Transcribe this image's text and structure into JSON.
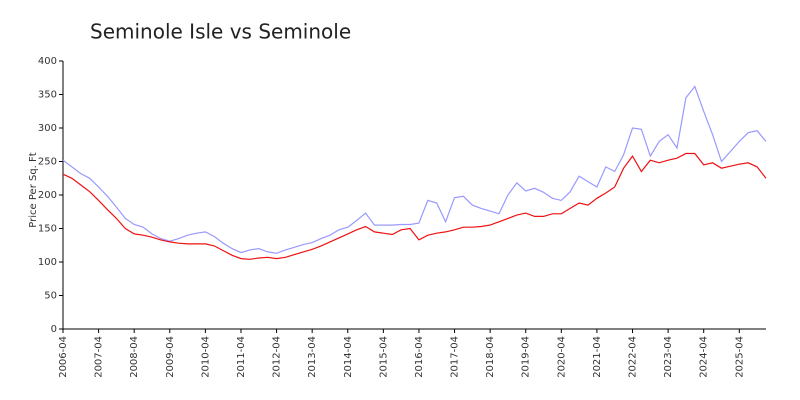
{
  "chart_data": {
    "type": "line",
    "title": "Seminole Isle vs Seminole",
    "y_label": "Price Per Sq. Ft",
    "x": [
      "2006-04",
      "2006-07",
      "2006-10",
      "2007-01",
      "2007-04",
      "2007-07",
      "2007-10",
      "2008-01",
      "2008-04",
      "2008-07",
      "2008-10",
      "2009-01",
      "2009-04",
      "2009-07",
      "2009-10",
      "2010-01",
      "2010-04",
      "2010-07",
      "2010-10",
      "2011-01",
      "2011-04",
      "2011-07",
      "2011-10",
      "2012-01",
      "2012-04",
      "2012-07",
      "2012-10",
      "2013-01",
      "2013-04",
      "2013-07",
      "2013-10",
      "2014-01",
      "2014-04",
      "2014-07",
      "2014-10",
      "2015-01",
      "2015-04",
      "2015-07",
      "2015-10",
      "2016-01",
      "2016-04",
      "2016-07",
      "2016-10",
      "2017-01",
      "2017-04",
      "2017-07",
      "2017-10",
      "2018-01",
      "2018-04",
      "2018-07",
      "2018-10",
      "2019-01",
      "2019-04",
      "2019-07",
      "2019-10",
      "2020-01",
      "2020-04",
      "2020-07",
      "2020-10",
      "2021-01",
      "2021-04",
      "2021-07",
      "2021-10",
      "2022-01",
      "2022-04",
      "2022-07",
      "2022-10",
      "2023-01",
      "2023-04",
      "2023-07",
      "2023-10",
      "2024-01",
      "2024-04",
      "2024-07",
      "2024-10",
      "2025-01",
      "2025-04",
      "2025-07",
      "2025-10",
      "2026-01"
    ],
    "series": [
      {
        "color": "#9999ff",
        "values": [
          252,
          242,
          232,
          225,
          212,
          198,
          182,
          165,
          156,
          152,
          142,
          135,
          131,
          135,
          140,
          143,
          145,
          138,
          128,
          120,
          114,
          118,
          120,
          115,
          113,
          118,
          122,
          126,
          129,
          135,
          140,
          148,
          152,
          162,
          173,
          155,
          155,
          155,
          156,
          156,
          158,
          192,
          188,
          160,
          196,
          198,
          185,
          180,
          176,
          172,
          200,
          218,
          206,
          210,
          204,
          195,
          192,
          205,
          228,
          220,
          212,
          242,
          235,
          260,
          300,
          298,
          258,
          280,
          290,
          270,
          345,
          362,
          325,
          290,
          250,
          265,
          280,
          293,
          296,
          280
        ]
      },
      {
        "color": "#ee1111",
        "values": [
          231,
          225,
          215,
          205,
          192,
          178,
          165,
          150,
          142,
          140,
          137,
          133,
          130,
          128,
          127,
          127,
          127,
          124,
          117,
          110,
          105,
          104,
          106,
          107,
          105,
          107,
          111,
          115,
          119,
          124,
          130,
          136,
          142,
          148,
          153,
          145,
          143,
          141,
          148,
          150,
          133,
          140,
          143,
          145,
          148,
          152,
          152,
          153,
          155,
          160,
          165,
          170,
          173,
          168,
          168,
          172,
          172,
          180,
          188,
          185,
          195,
          203,
          212,
          240,
          258,
          235,
          252,
          248,
          252,
          255,
          262,
          262,
          245,
          248,
          240,
          243,
          246,
          248,
          242,
          225
        ]
      }
    ],
    "xlim": [
      "2006-04",
      "2026-01"
    ],
    "xticks": [
      "2006-04",
      "2007-04",
      "2008-04",
      "2009-04",
      "2010-04",
      "2011-04",
      "2012-04",
      "2013-04",
      "2014-04",
      "2015-04",
      "2016-04",
      "2017-04",
      "2018-04",
      "2019-04",
      "2020-04",
      "2021-04",
      "2022-04",
      "2023-04",
      "2024-04",
      "2025-04"
    ],
    "ylim": [
      0,
      400
    ],
    "yticks": [
      0,
      50,
      100,
      150,
      200,
      250,
      300,
      350,
      400
    ],
    "grid": false
  }
}
